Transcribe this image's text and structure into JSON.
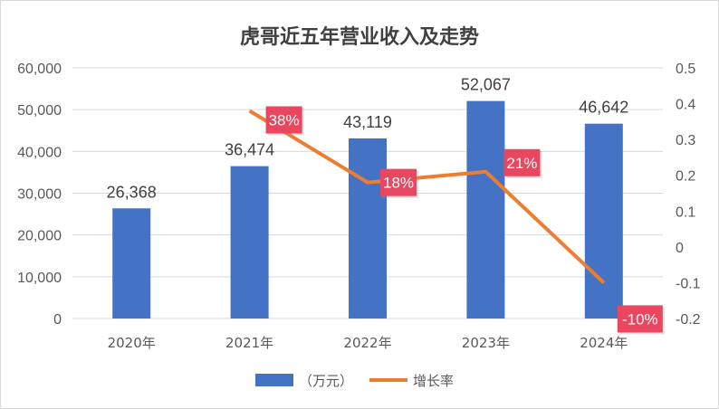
{
  "chart_data": {
    "type": "bar+line",
    "title": "虎哥近五年营业收入及走势",
    "categories": [
      "2020年",
      "2021年",
      "2022年",
      "2023年",
      "2024年"
    ],
    "series": [
      {
        "name": "（万元）",
        "type": "bar",
        "axis": "left",
        "values": [
          26368,
          36474,
          43119,
          52067,
          46642
        ],
        "labels": [
          "26,368",
          "36,474",
          "43,119",
          "52,067",
          "46,642"
        ]
      },
      {
        "name": "增长率",
        "type": "line",
        "axis": "right",
        "values": [
          null,
          0.38,
          0.18,
          0.21,
          -0.1
        ],
        "labels": [
          "",
          "38%",
          "18%",
          "21%",
          "-10%"
        ]
      }
    ],
    "left_axis": {
      "min": 0,
      "max": 60000,
      "step": 10000,
      "ticks": [
        "0",
        "10,000",
        "20,000",
        "30,000",
        "40,000",
        "50,000",
        "60,000"
      ]
    },
    "right_axis": {
      "min": -0.2,
      "max": 0.5,
      "step": 0.1,
      "ticks": [
        "-0.2",
        "-0.1",
        "0",
        "0.1",
        "0.2",
        "0.3",
        "0.4",
        "0.5"
      ]
    },
    "grid": true,
    "legend_position": "bottom",
    "colors": {
      "bar": "#4472C4",
      "line": "#ED7D31",
      "label_bg": "#E8475F",
      "grid": "#d9d9d9"
    }
  }
}
